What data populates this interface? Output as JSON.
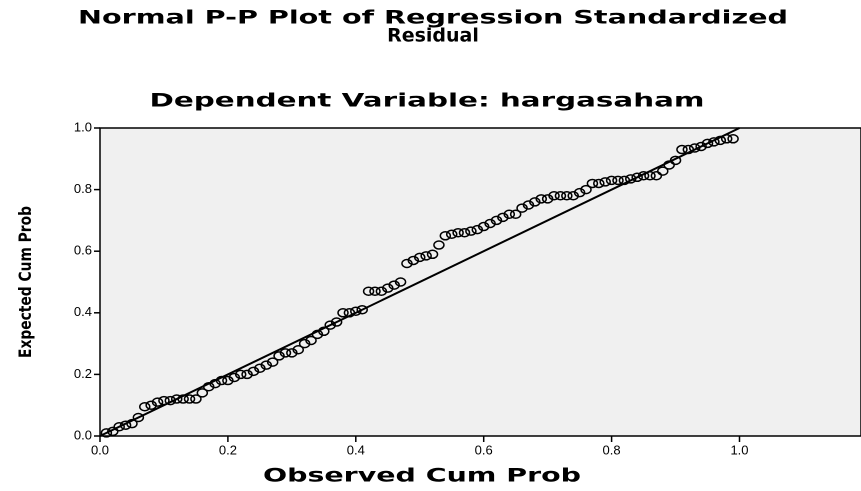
{
  "chart_data": {
    "type": "scatter",
    "title": [
      "Normal P-P Plot of Regression Standardized",
      "Residual"
    ],
    "subtitle": "Dependent Variable: hargasaham",
    "x_label": "Observed Cum Prob",
    "y_label": "Expected Cum Prob",
    "x": [
      0.01,
      0.02,
      0.03,
      0.04,
      0.05,
      0.06,
      0.07,
      0.08,
      0.09,
      0.1,
      0.11,
      0.12,
      0.13,
      0.14,
      0.15,
      0.16,
      0.17,
      0.18,
      0.19,
      0.2,
      0.21,
      0.22,
      0.23,
      0.24,
      0.25,
      0.26,
      0.27,
      0.28,
      0.29,
      0.3,
      0.31,
      0.32,
      0.33,
      0.34,
      0.35,
      0.36,
      0.37,
      0.38,
      0.39,
      0.4,
      0.41,
      0.42,
      0.43,
      0.44,
      0.45,
      0.46,
      0.47,
      0.48,
      0.49,
      0.5,
      0.51,
      0.52,
      0.53,
      0.54,
      0.55,
      0.56,
      0.57,
      0.58,
      0.59,
      0.6,
      0.61,
      0.62,
      0.63,
      0.64,
      0.65,
      0.66,
      0.67,
      0.68,
      0.69,
      0.7,
      0.71,
      0.72,
      0.73,
      0.74,
      0.75,
      0.76,
      0.77,
      0.78,
      0.79,
      0.8,
      0.81,
      0.82,
      0.83,
      0.84,
      0.85,
      0.86,
      0.87,
      0.88,
      0.89,
      0.9,
      0.91,
      0.92,
      0.93,
      0.94,
      0.95,
      0.96,
      0.97,
      0.98,
      0.99
    ],
    "values": [
      0.01,
      0.015,
      0.03,
      0.035,
      0.04,
      0.06,
      0.095,
      0.1,
      0.11,
      0.115,
      0.115,
      0.12,
      0.12,
      0.12,
      0.12,
      0.14,
      0.16,
      0.17,
      0.18,
      0.18,
      0.19,
      0.2,
      0.2,
      0.21,
      0.22,
      0.23,
      0.24,
      0.26,
      0.27,
      0.27,
      0.28,
      0.3,
      0.31,
      0.33,
      0.34,
      0.36,
      0.37,
      0.4,
      0.4,
      0.405,
      0.41,
      0.47,
      0.47,
      0.47,
      0.48,
      0.49,
      0.5,
      0.56,
      0.57,
      0.58,
      0.585,
      0.59,
      0.62,
      0.65,
      0.655,
      0.66,
      0.66,
      0.665,
      0.67,
      0.68,
      0.69,
      0.7,
      0.71,
      0.72,
      0.72,
      0.74,
      0.75,
      0.76,
      0.77,
      0.77,
      0.78,
      0.78,
      0.78,
      0.78,
      0.79,
      0.8,
      0.82,
      0.82,
      0.825,
      0.83,
      0.83,
      0.83,
      0.835,
      0.84,
      0.845,
      0.845,
      0.845,
      0.86,
      0.88,
      0.895,
      0.93,
      0.93,
      0.935,
      0.94,
      0.95,
      0.955,
      0.96,
      0.965,
      0.965
    ],
    "reference_line": {
      "x": [
        0,
        1
      ],
      "y": [
        0,
        1
      ]
    },
    "xlim": [
      0,
      1.19
    ],
    "ylim": [
      0,
      1
    ],
    "xticks": [
      {
        "value": 0,
        "label": "0.0"
      },
      0.2,
      0.4,
      0.6,
      0.8,
      {
        "value": 1,
        "label": "1.0"
      }
    ],
    "yticks": [
      {
        "value": 0,
        "label": "0.0"
      },
      0.2,
      0.4,
      0.6,
      0.8,
      {
        "value": 1,
        "label": "1.0"
      }
    ],
    "color": "#000000",
    "background": "#f0f0f0"
  }
}
